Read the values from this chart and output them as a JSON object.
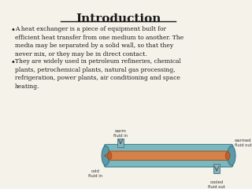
{
  "title": "Introduction",
  "background_color": "#f5f2ea",
  "title_color": "#1a1a1a",
  "text_color": "#1a1a1a",
  "bullet1": "A heat exchanger is a piece of equipment built for\nefficient heat transfer from one medium to another. The\nmedia may be separated by a solid wall, so that they\nnever mix, or they may be in direct contact.",
  "bullet2": "They are widely used in petroleum refineries, chemical\nplants, petrochemical plants, natural gas processing,\nrefrigeration, power plants, air conditioning and space\nheating.",
  "label_warm_fluid_in": "warm\nfluid in",
  "label_warmed_fluid_out": "warmed\nfluid out",
  "label_cold_fluid_in": "cold\nfluid in",
  "label_cooled_fluid_out": "cooled\nfluid out",
  "title_fontsize": 11,
  "body_fontsize": 5.5,
  "label_fontsize": 3.8,
  "shell_color": "#7ab8c0",
  "shell_dark": "#5a9aaa",
  "tube_color": "#d4824a",
  "underline_color": "#1a1a1a"
}
